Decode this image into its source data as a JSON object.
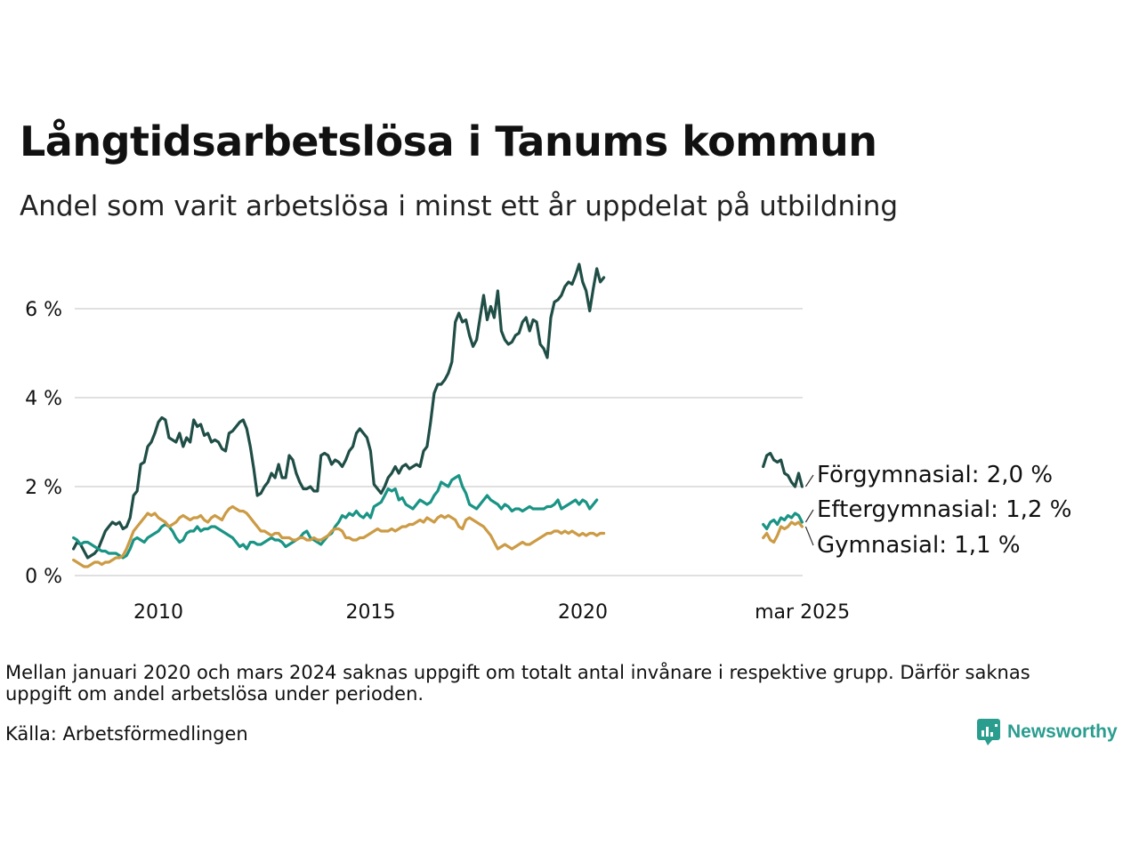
{
  "title": "Långtidsarbetslösa i Tanums kommun",
  "subtitle": "Andel som varit arbetslösa i minst ett år uppdelat på utbildning",
  "note": "Mellan januari 2020 och mars 2024 saknas uppgift om totalt antal invånare i respektive grupp. Därför saknas uppgift om andel arbetslösa under perioden.",
  "source": "Källa: Arbetsförmedlingen",
  "brand": "Newsworthy",
  "colors": {
    "forgymnasial": "#1f4e46",
    "eftergymnasial": "#1a9485",
    "gymnasial": "#cc9b45",
    "grid": "#e0e0e0",
    "brand": "#2a9d8f"
  },
  "chart_data": {
    "type": "line",
    "title": "Långtidsarbetslösa i Tanums kommun",
    "ylabel": "",
    "ylim": [
      0,
      7.2
    ],
    "y_ticks": [
      0,
      2,
      4,
      6
    ],
    "y_tick_labels": [
      "0 %",
      "2 %",
      "4 %",
      "6 %"
    ],
    "x_ticks": [
      2010,
      2015,
      2020,
      2025.17
    ],
    "x_tick_labels": [
      "2010",
      "2015",
      "2020",
      "mar 2025"
    ],
    "x_range": [
      2008.0,
      2025.2
    ],
    "grid": true,
    "series": [
      {
        "name": "Förgymnasial",
        "end_label": "Förgymnasial: 2,0 %",
        "color": "#1f4e46",
        "segments": [
          {
            "start": 2008.0,
            "step": 0.0833,
            "values": [
              0.6,
              0.75,
              0.7,
              0.55,
              0.4,
              0.45,
              0.5,
              0.6,
              0.8,
              1.0,
              1.1,
              1.2,
              1.15,
              1.2,
              1.05,
              1.1,
              1.3,
              1.8,
              1.9,
              2.5,
              2.55,
              2.9,
              3.0,
              3.2,
              3.45,
              3.55,
              3.5,
              3.1,
              3.05,
              3.0,
              3.2,
              2.9,
              3.1,
              3.0,
              3.5,
              3.35,
              3.4,
              3.15,
              3.2,
              3.0,
              3.05,
              3.0,
              2.85,
              2.8,
              3.2,
              3.25,
              3.35,
              3.45,
              3.5,
              3.3,
              2.9,
              2.4,
              1.8,
              1.85,
              2.0,
              2.1,
              2.3,
              2.2,
              2.5,
              2.2,
              2.2,
              2.7,
              2.6,
              2.3,
              2.1,
              1.95,
              1.95,
              2.0,
              1.9,
              1.9,
              2.7,
              2.75,
              2.7,
              2.5,
              2.6,
              2.55,
              2.45,
              2.6,
              2.8,
              2.9,
              3.2,
              3.3,
              3.2,
              3.1,
              2.8,
              2.05,
              1.95,
              1.85,
              2.0,
              2.2,
              2.3,
              2.45,
              2.3,
              2.45,
              2.5,
              2.4,
              2.45,
              2.5,
              2.45,
              2.8,
              2.9,
              3.45,
              4.1,
              4.3,
              4.3,
              4.4,
              4.55,
              4.8,
              5.7,
              5.9,
              5.7,
              5.75,
              5.4,
              5.15,
              5.3,
              5.8,
              6.3,
              5.75,
              6.05,
              5.8,
              6.4,
              5.5,
              5.3,
              5.2,
              5.25,
              5.4,
              5.45,
              5.7,
              5.8,
              5.5,
              5.75,
              5.7,
              5.2,
              5.1,
              4.9,
              5.8,
              6.15,
              6.2,
              6.3,
              6.5,
              6.6,
              6.55,
              6.75,
              7.0,
              6.6,
              6.4,
              5.95,
              6.45,
              6.9,
              6.6,
              6.7
            ]
          },
          {
            "start": 2024.25,
            "step": 0.0833,
            "values": [
              2.45,
              2.7,
              2.75,
              2.6,
              2.55,
              2.6,
              2.3,
              2.25,
              2.1,
              2.0,
              2.3,
              2.0
            ]
          }
        ]
      },
      {
        "name": "Eftergymnasial",
        "end_label": "Eftergymnasial: 1,2 %",
        "color": "#1a9485",
        "segments": [
          {
            "start": 2008.0,
            "step": 0.0833,
            "values": [
              0.85,
              0.8,
              0.7,
              0.75,
              0.75,
              0.7,
              0.65,
              0.6,
              0.55,
              0.55,
              0.5,
              0.5,
              0.5,
              0.45,
              0.4,
              0.45,
              0.6,
              0.8,
              0.85,
              0.8,
              0.75,
              0.85,
              0.9,
              0.95,
              1.0,
              1.1,
              1.15,
              1.1,
              1.0,
              0.85,
              0.75,
              0.8,
              0.95,
              1.0,
              1.0,
              1.1,
              1.0,
              1.05,
              1.05,
              1.1,
              1.1,
              1.05,
              1.0,
              0.95,
              0.9,
              0.85,
              0.75,
              0.65,
              0.7,
              0.6,
              0.75,
              0.75,
              0.7,
              0.7,
              0.75,
              0.8,
              0.85,
              0.8,
              0.8,
              0.75,
              0.65,
              0.7,
              0.75,
              0.8,
              0.85,
              0.95,
              1.0,
              0.85,
              0.8,
              0.75,
              0.7,
              0.8,
              0.9,
              0.95,
              1.1,
              1.2,
              1.35,
              1.3,
              1.4,
              1.35,
              1.45,
              1.35,
              1.3,
              1.4,
              1.3,
              1.55,
              1.6,
              1.65,
              1.8,
              1.95,
              1.9,
              1.95,
              1.7,
              1.75,
              1.6,
              1.55,
              1.5,
              1.6,
              1.7,
              1.65,
              1.6,
              1.65,
              1.8,
              1.9,
              2.1,
              2.05,
              2.0,
              2.15,
              2.2,
              2.25,
              2.0,
              1.85,
              1.6,
              1.55,
              1.5,
              1.6,
              1.7,
              1.8,
              1.7,
              1.65,
              1.6,
              1.5,
              1.6,
              1.55,
              1.45,
              1.5,
              1.5,
              1.45,
              1.5,
              1.55,
              1.5,
              1.5,
              1.5,
              1.5,
              1.55,
              1.55,
              1.6,
              1.7,
              1.5,
              1.55,
              1.6,
              1.65,
              1.7,
              1.6,
              1.7,
              1.65,
              1.5,
              1.6,
              1.7
            ]
          },
          {
            "start": 2024.25,
            "step": 0.0833,
            "values": [
              1.15,
              1.05,
              1.2,
              1.25,
              1.15,
              1.3,
              1.25,
              1.35,
              1.3,
              1.4,
              1.35,
              1.2
            ]
          }
        ]
      },
      {
        "name": "Gymnasial",
        "end_label": "Gymnasial: 1,1 %",
        "color": "#cc9b45",
        "segments": [
          {
            "start": 2008.0,
            "step": 0.0833,
            "values": [
              0.35,
              0.3,
              0.25,
              0.2,
              0.2,
              0.25,
              0.3,
              0.3,
              0.25,
              0.3,
              0.3,
              0.35,
              0.4,
              0.4,
              0.45,
              0.6,
              0.8,
              1.0,
              1.1,
              1.2,
              1.3,
              1.4,
              1.35,
              1.4,
              1.3,
              1.25,
              1.2,
              1.1,
              1.15,
              1.2,
              1.3,
              1.35,
              1.3,
              1.25,
              1.3,
              1.3,
              1.35,
              1.25,
              1.2,
              1.3,
              1.35,
              1.3,
              1.25,
              1.4,
              1.5,
              1.55,
              1.5,
              1.45,
              1.45,
              1.4,
              1.3,
              1.2,
              1.1,
              1.0,
              1.0,
              0.95,
              0.9,
              0.95,
              0.95,
              0.85,
              0.85,
              0.85,
              0.8,
              0.8,
              0.85,
              0.85,
              0.8,
              0.8,
              0.85,
              0.8,
              0.8,
              0.85,
              0.9,
              1.0,
              1.05,
              1.05,
              1.0,
              0.85,
              0.85,
              0.8,
              0.8,
              0.85,
              0.85,
              0.9,
              0.95,
              1.0,
              1.05,
              1.0,
              1.0,
              1.0,
              1.05,
              1.0,
              1.05,
              1.1,
              1.1,
              1.15,
              1.15,
              1.2,
              1.25,
              1.2,
              1.3,
              1.25,
              1.2,
              1.3,
              1.35,
              1.3,
              1.35,
              1.3,
              1.25,
              1.1,
              1.05,
              1.25,
              1.3,
              1.25,
              1.2,
              1.15,
              1.1,
              1.0,
              0.9,
              0.75,
              0.6,
              0.65,
              0.7,
              0.65,
              0.6,
              0.65,
              0.7,
              0.75,
              0.7,
              0.7,
              0.75,
              0.8,
              0.85,
              0.9,
              0.95,
              0.95,
              1.0,
              1.0,
              0.95,
              1.0,
              0.95,
              1.0,
              0.95,
              0.9,
              0.95,
              0.9,
              0.95,
              0.95,
              0.9,
              0.95,
              0.95
            ]
          },
          {
            "start": 2024.25,
            "step": 0.0833,
            "values": [
              0.85,
              0.95,
              0.8,
              0.75,
              0.9,
              1.1,
              1.05,
              1.1,
              1.2,
              1.15,
              1.2,
              1.1
            ]
          }
        ]
      }
    ]
  }
}
